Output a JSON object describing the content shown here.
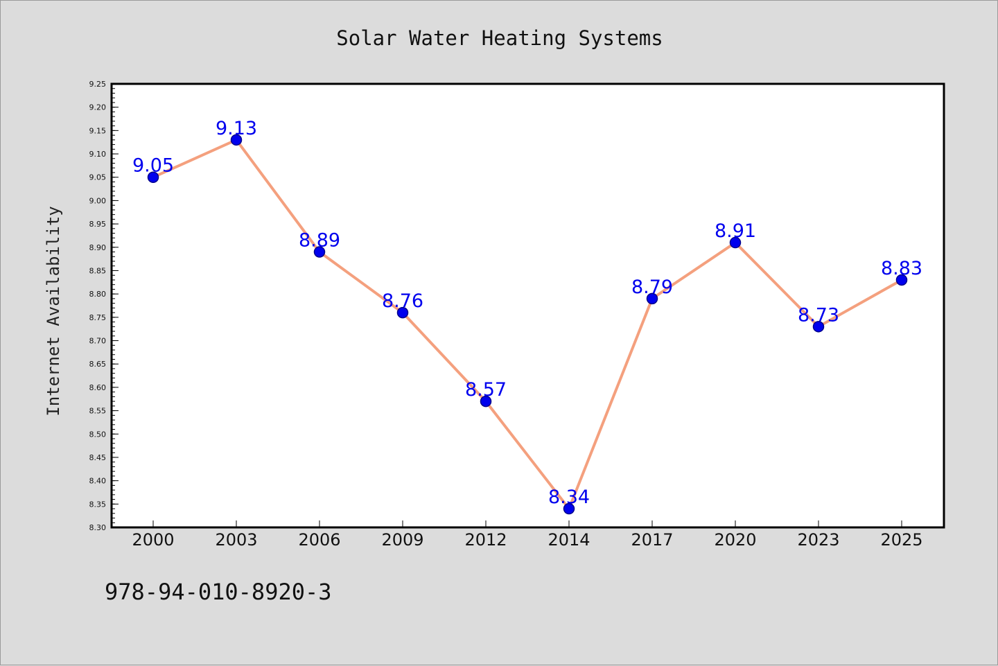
{
  "chart_data": {
    "type": "line",
    "title": "Solar Water Heating Systems",
    "ylabel": "Internet Availability",
    "xlabel": "",
    "categories": [
      "2000",
      "2003",
      "2006",
      "2009",
      "2012",
      "2014",
      "2017",
      "2020",
      "2023",
      "2025"
    ],
    "series": [
      {
        "values": [
          9.05,
          9.13,
          8.89,
          8.76,
          8.57,
          8.34,
          8.79,
          8.91,
          8.73,
          8.83
        ],
        "data_labels": [
          "9.05",
          "9.13",
          "8.89",
          "8.76",
          "8.57",
          "8.34",
          "8.79",
          "8.91",
          "8.73",
          "8.83"
        ]
      }
    ],
    "ylim": [
      8.3,
      9.25
    ],
    "yticks": [
      "8.30",
      "8.35",
      "8.40",
      "8.45",
      "8.50",
      "8.55",
      "8.60",
      "8.65",
      "8.70",
      "8.75",
      "8.80",
      "8.85",
      "8.90",
      "8.95",
      "9.00",
      "9.05",
      "9.10",
      "9.15",
      "9.20",
      "9.25"
    ],
    "grid": false,
    "legend": "none",
    "colors": {
      "line": "#f4a07e",
      "marker": "#0000ee",
      "marker_edge": "#00008b",
      "data_label": "#0000ee",
      "plot_background": "#ffffff",
      "figure_background": "#dcdcdc"
    }
  },
  "footnote": "978-94-010-8920-3"
}
